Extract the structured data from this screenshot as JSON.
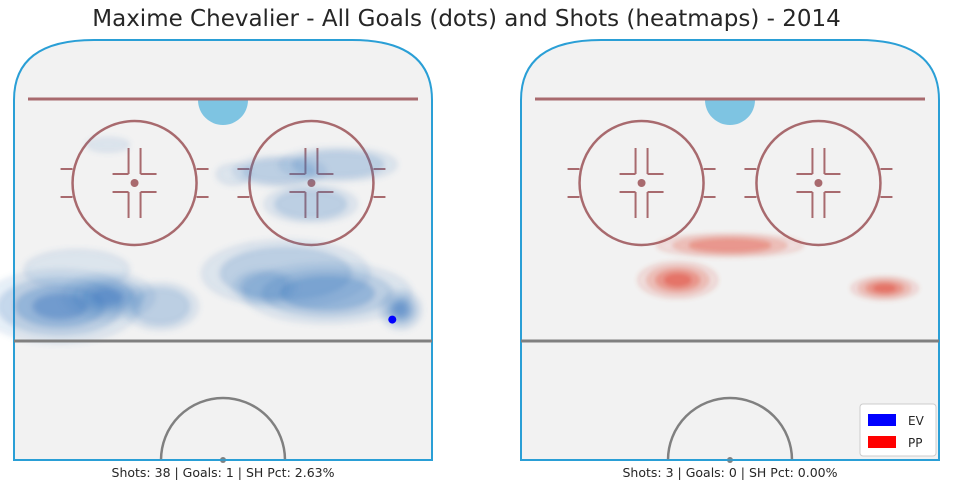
{
  "title": "Maxime Chevalier - All Goals (dots) and Shots (heatmaps) - 2014",
  "colors": {
    "ice": "#f2f2f2",
    "boards": "#2a9fd6",
    "blue_line": "#a86a6e",
    "faceoff": "#a86a6e",
    "center_line": "#808080",
    "crease": "#7ec4e2",
    "ev": "#0000ff",
    "pp": "#ff0000",
    "ev_heat": "#3a78bf",
    "pp_heat": "#e0402e"
  },
  "chart_data": [
    {
      "type": "heatmap",
      "panel": "left",
      "strength": "EV",
      "caption": "Shots: 38 | Goals: 1 | SH Pct: 2.63%",
      "stats": {
        "shots": 38,
        "goals": 1,
        "sh_pct": 2.63
      },
      "goals": [
        {
          "x": 0.81,
          "y": -0.02
        }
      ],
      "density_blobs": [
        {
          "x": -0.78,
          "y": 0.02,
          "w": 0.38,
          "h": 0.11,
          "level": 4
        },
        {
          "x": -0.55,
          "y": 0.05,
          "w": 0.22,
          "h": 0.07,
          "level": 4
        },
        {
          "x": -0.3,
          "y": 0.02,
          "w": 0.18,
          "h": 0.07,
          "level": 2
        },
        {
          "x": -0.7,
          "y": 0.13,
          "w": 0.25,
          "h": 0.06,
          "level": 1
        },
        {
          "x": 0.3,
          "y": 0.12,
          "w": 0.4,
          "h": 0.1,
          "level": 2
        },
        {
          "x": 0.5,
          "y": 0.06,
          "w": 0.4,
          "h": 0.09,
          "level": 3
        },
        {
          "x": 0.85,
          "y": 0.01,
          "w": 0.1,
          "h": 0.06,
          "level": 4
        },
        {
          "x": 0.2,
          "y": 0.08,
          "w": 0.15,
          "h": 0.05,
          "level": 2
        },
        {
          "x": -0.55,
          "y": 0.51,
          "w": 0.1,
          "h": 0.02,
          "level": 1
        },
        {
          "x": 0.27,
          "y": 0.43,
          "w": 0.22,
          "h": 0.045,
          "level": 2
        },
        {
          "x": 0.55,
          "y": 0.45,
          "w": 0.28,
          "h": 0.05,
          "level": 2
        },
        {
          "x": 0.42,
          "y": 0.33,
          "w": 0.22,
          "h": 0.055,
          "level": 2
        },
        {
          "x": 0.05,
          "y": 0.42,
          "w": 0.08,
          "h": 0.03,
          "level": 1
        }
      ]
    },
    {
      "type": "heatmap",
      "panel": "right",
      "strength": "PP",
      "caption": "Shots: 3 | Goals: 0 | SH Pct: 0.00%",
      "stats": {
        "shots": 3,
        "goals": 0,
        "sh_pct": 0.0
      },
      "goals": [],
      "density_blobs": [
        {
          "x": 0.0,
          "y": 0.205,
          "w": 0.35,
          "h": 0.035,
          "level": 3
        },
        {
          "x": -0.25,
          "y": 0.1,
          "w": 0.19,
          "h": 0.055,
          "level": 4
        },
        {
          "x": 0.74,
          "y": 0.075,
          "w": 0.16,
          "h": 0.035,
          "level": 4
        }
      ]
    }
  ],
  "legend": {
    "placement": "bottom-right",
    "items": [
      {
        "label": "EV",
        "color": "#0000ff"
      },
      {
        "label": "PP",
        "color": "#ff0000"
      }
    ]
  }
}
